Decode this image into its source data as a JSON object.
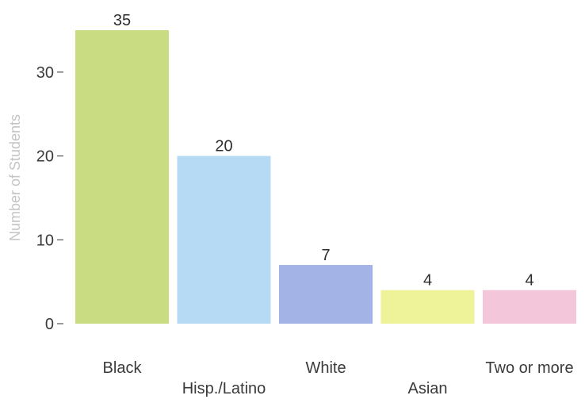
{
  "chart_data": {
    "type": "bar",
    "title": "",
    "xlabel": "",
    "ylabel": "Number of Students",
    "categories": [
      "Black",
      "Hisp./Latino",
      "White",
      "Asian",
      "Two or more"
    ],
    "values": [
      35,
      20,
      7,
      4,
      4
    ],
    "data_labels": [
      "35",
      "20",
      "7",
      "4",
      "4"
    ],
    "colors": [
      "#c9dc82",
      "#b6daf3",
      "#a3b3e6",
      "#eef298",
      "#f4c6d9"
    ],
    "ylim": [
      0,
      37
    ],
    "yticks": [
      0,
      10,
      20,
      30
    ],
    "ytick_labels": [
      "0",
      "10",
      "20",
      "30"
    ],
    "grid": false,
    "legend": "none"
  }
}
